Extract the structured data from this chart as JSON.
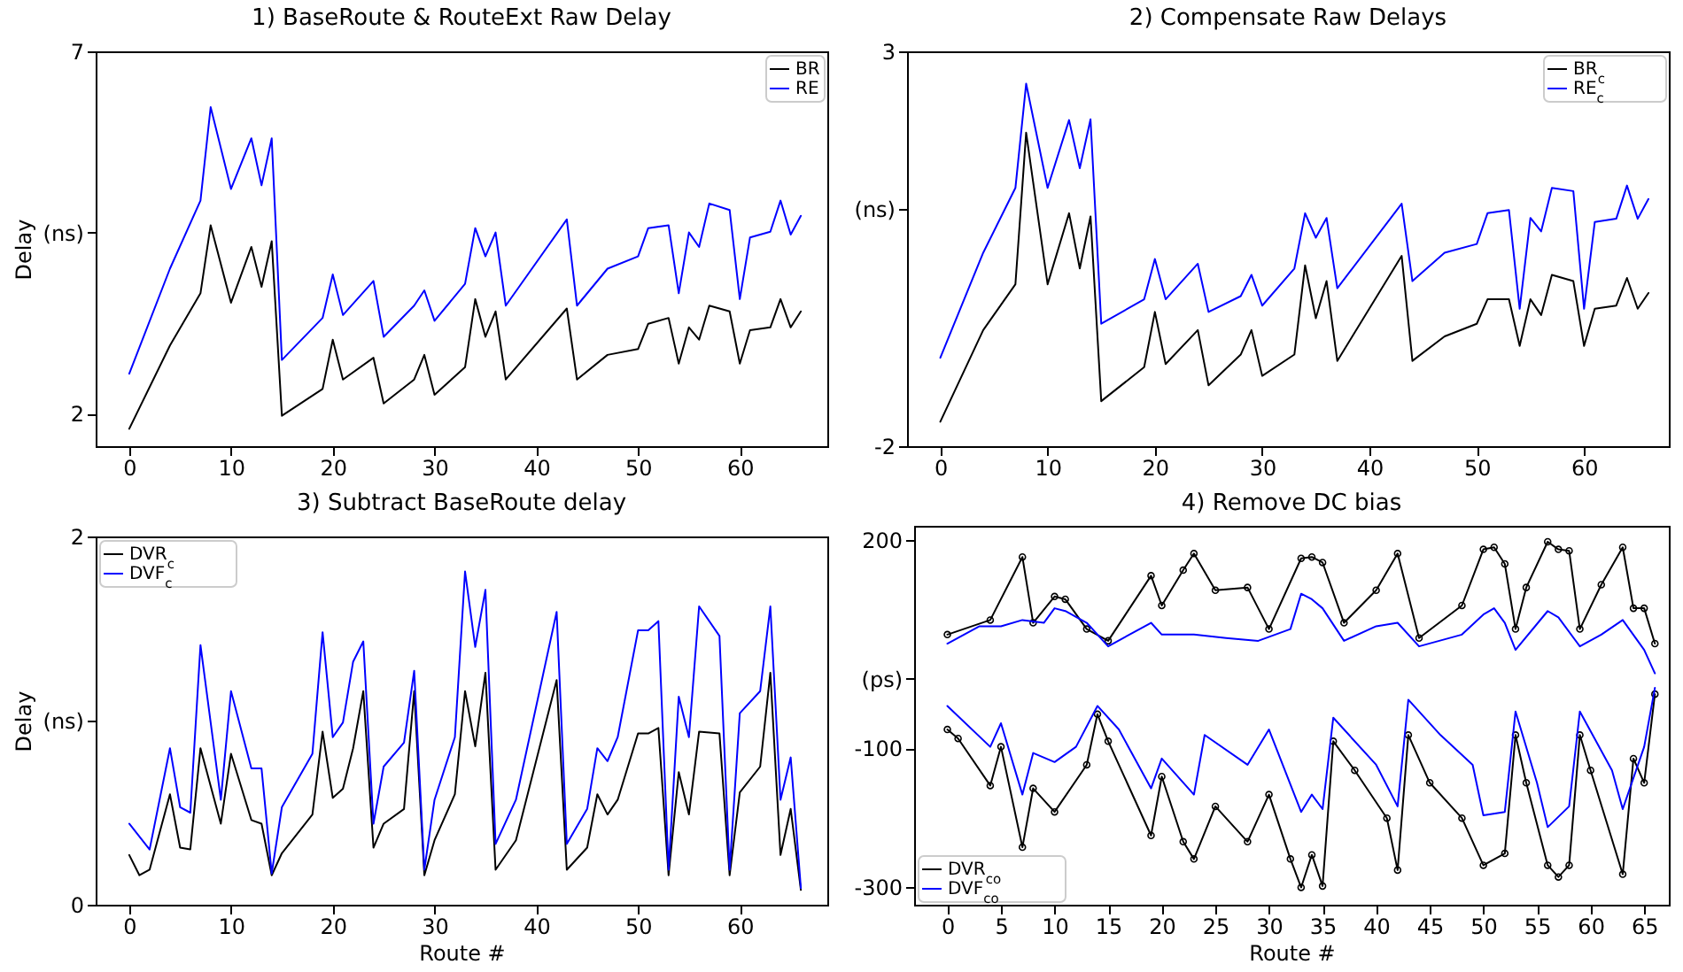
{
  "chart_data": [
    {
      "type": "line",
      "title": "1) BaseRoute & RouteExt Raw Delay",
      "ylabel": "Delay",
      "xlim": [
        -3.3,
        68.6
      ],
      "xticks": [
        0,
        10,
        20,
        30,
        40,
        50,
        60
      ],
      "ylim": [
        1.55,
        7
      ],
      "yticks": [
        2,
        {
          "value": 4.5,
          "label": "(ns)"
        },
        7
      ],
      "legend": "top right",
      "series": [
        {
          "name": "BR",
          "color": "#000000",
          "x": [
            0,
            4,
            7,
            8,
            10,
            12,
            13,
            14,
            15,
            19,
            20,
            21,
            24,
            25,
            28,
            29,
            30,
            33,
            34,
            35,
            36,
            37,
            43,
            44,
            47,
            50,
            51,
            53,
            54,
            55,
            56,
            57,
            59,
            60,
            61,
            63,
            64,
            65,
            66
          ],
          "values": [
            1.79,
            2.94,
            3.66,
            4.6,
            3.53,
            4.3,
            3.75,
            4.38,
            1.97,
            2.34,
            3.02,
            2.47,
            2.77,
            2.14,
            2.47,
            2.81,
            2.26,
            2.64,
            3.58,
            3.06,
            3.41,
            2.47,
            3.45,
            2.47,
            2.81,
            2.89,
            3.24,
            3.32,
            2.69,
            3.19,
            3.02,
            3.49,
            3.41,
            2.69,
            3.15,
            3.19,
            3.58,
            3.19,
            3.41
          ]
        },
        {
          "name": "RE",
          "color": "#0000ff",
          "x": [
            0,
            4,
            7,
            8,
            10,
            12,
            13,
            14,
            15,
            19,
            20,
            21,
            24,
            25,
            28,
            29,
            30,
            33,
            34,
            35,
            36,
            37,
            43,
            44,
            47,
            50,
            51,
            53,
            54,
            55,
            56,
            57,
            59,
            60,
            61,
            63,
            64,
            65,
            66
          ],
          "values": [
            2.55,
            4.0,
            4.94,
            6.23,
            5.1,
            5.8,
            5.15,
            5.8,
            2.74,
            3.32,
            3.92,
            3.36,
            3.83,
            3.06,
            3.49,
            3.7,
            3.28,
            3.79,
            4.56,
            4.17,
            4.5,
            3.49,
            4.68,
            3.49,
            4.0,
            4.17,
            4.56,
            4.6,
            3.66,
            4.5,
            4.3,
            4.9,
            4.81,
            3.58,
            4.43,
            4.51,
            4.94,
            4.47,
            4.73
          ]
        }
      ]
    },
    {
      "type": "line",
      "title": "2) Compensate Raw Delays",
      "xlim": [
        -3.1,
        67.9
      ],
      "xticks": [
        0,
        10,
        20,
        30,
        40,
        50,
        60
      ],
      "ylim": [
        -2,
        3
      ],
      "yticks": [
        -2,
        {
          "value": 1,
          "label": "(ns)"
        },
        3
      ],
      "legend": "top right",
      "series": [
        {
          "name": "BR$_{c}$",
          "color": "#000000",
          "x": [
            0,
            4,
            7,
            8,
            10,
            12,
            13,
            14,
            15,
            19,
            20,
            21,
            24,
            25,
            28,
            29,
            30,
            33,
            34,
            35,
            36,
            37,
            43,
            44,
            47,
            50,
            51,
            53,
            54,
            55,
            56,
            57,
            59,
            60,
            61,
            63,
            64,
            65,
            66
          ],
          "values": [
            -1.69,
            -0.53,
            0.05,
            1.97,
            0.05,
            0.95,
            0.25,
            0.91,
            -1.43,
            -1.0,
            -0.3,
            -0.96,
            -0.53,
            -1.23,
            -0.84,
            -0.53,
            -1.11,
            -0.84,
            0.29,
            -0.38,
            0.09,
            -0.92,
            0.41,
            -0.92,
            -0.61,
            -0.45,
            -0.14,
            -0.14,
            -0.73,
            -0.14,
            -0.34,
            0.17,
            0.09,
            -0.73,
            -0.26,
            -0.22,
            0.13,
            -0.26,
            -0.06
          ]
        },
        {
          "name": "RE$_{c}$",
          "color": "#0000ff",
          "x": [
            0,
            4,
            7,
            8,
            10,
            12,
            13,
            14,
            15,
            19,
            20,
            21,
            24,
            25,
            28,
            29,
            30,
            33,
            34,
            35,
            36,
            37,
            43,
            44,
            47,
            50,
            51,
            53,
            54,
            55,
            56,
            57,
            59,
            60,
            61,
            63,
            64,
            65,
            66
          ],
          "values": [
            -0.88,
            0.45,
            1.27,
            2.59,
            1.27,
            2.13,
            1.52,
            2.14,
            -0.45,
            -0.14,
            0.37,
            -0.14,
            0.31,
            -0.3,
            -0.1,
            0.17,
            -0.22,
            0.25,
            0.95,
            0.64,
            0.89,
            0.0,
            1.07,
            0.09,
            0.45,
            0.56,
            0.95,
            0.99,
            -0.26,
            0.89,
            0.72,
            1.27,
            1.23,
            -0.26,
            0.84,
            0.88,
            1.3,
            0.88,
            1.13
          ]
        }
      ]
    },
    {
      "type": "line",
      "title": "3) Subtract BaseRoute delay",
      "xlabel": "Route #",
      "ylabel": "Delay",
      "xlim": [
        -3.3,
        68.6
      ],
      "xticks": [
        0,
        10,
        20,
        30,
        40,
        50,
        60
      ],
      "ylim": [
        0,
        2
      ],
      "yticks": [
        0,
        {
          "value": 1,
          "label": "(ns)"
        },
        2
      ],
      "legend": "top left",
      "series": [
        {
          "name": "DVR$_{c}$",
          "color": "#000000",
          "x": [
            0,
            1,
            2,
            4,
            5,
            6,
            7,
            9,
            10,
            12,
            13,
            14,
            15,
            18,
            19,
            20,
            21,
            22,
            23,
            24,
            25,
            27,
            28,
            29,
            30,
            32,
            33,
            34,
            35,
            36,
            38,
            42,
            43,
            45,
            46,
            47,
            48,
            50,
            51,
            52,
            53,
            54,
            55,
            56,
            58,
            59,
            60,
            62,
            63,
            64,
            65,
            66
          ],
          "values": [
            0.27,
            0.16,
            0.19,
            0.6,
            0.31,
            0.3,
            0.85,
            0.44,
            0.82,
            0.46,
            0.44,
            0.16,
            0.28,
            0.49,
            0.94,
            0.58,
            0.63,
            0.85,
            1.16,
            0.31,
            0.44,
            0.52,
            1.16,
            0.16,
            0.35,
            0.6,
            1.16,
            0.86,
            1.26,
            0.19,
            0.35,
            1.22,
            0.19,
            0.31,
            0.6,
            0.49,
            0.57,
            0.93,
            0.93,
            0.96,
            0.16,
            0.72,
            0.49,
            0.94,
            0.93,
            0.16,
            0.61,
            0.75,
            1.26,
            0.27,
            0.52,
            0.08
          ]
        },
        {
          "name": "DVF$_{c}$",
          "color": "#0000ff",
          "x": [
            0,
            2,
            4,
            5,
            6,
            7,
            9,
            10,
            12,
            13,
            14,
            15,
            18,
            19,
            20,
            21,
            22,
            23,
            24,
            25,
            27,
            28,
            29,
            30,
            32,
            33,
            34,
            35,
            36,
            38,
            42,
            43,
            45,
            46,
            47,
            48,
            50,
            51,
            52,
            53,
            54,
            55,
            56,
            58,
            59,
            60,
            62,
            63,
            64,
            65,
            66
          ],
          "values": [
            0.44,
            0.3,
            0.85,
            0.53,
            0.5,
            1.41,
            0.57,
            1.16,
            0.74,
            0.74,
            0.17,
            0.53,
            0.82,
            1.48,
            0.91,
            0.99,
            1.32,
            1.43,
            0.44,
            0.75,
            0.88,
            1.27,
            0.19,
            0.57,
            0.91,
            1.81,
            1.4,
            1.71,
            0.33,
            0.57,
            1.59,
            0.33,
            0.52,
            0.85,
            0.78,
            0.91,
            1.49,
            1.49,
            1.54,
            0.19,
            1.13,
            0.91,
            1.62,
            1.46,
            0.19,
            1.04,
            1.16,
            1.62,
            0.57,
            0.8,
            0.09
          ]
        }
      ]
    },
    {
      "type": "line",
      "title": "4) Remove DC bias",
      "xlabel": "Route #",
      "xlim": [
        -3.1,
        67.3
      ],
      "xticks": [
        0,
        5,
        10,
        15,
        20,
        25,
        30,
        35,
        40,
        45,
        50,
        55,
        60,
        65
      ],
      "ylim": [
        -326,
        221
      ],
      "yticks": [
        -300,
        -100,
        {
          "value": 0,
          "label": "(ps)"
        },
        200
      ],
      "legend": "bottom left",
      "series": [
        {
          "name": "DVR$_{co}$",
          "color": "#000000",
          "marker": "circle",
          "x": [
            0,
            4,
            7,
            8,
            10,
            11,
            13,
            15,
            19,
            20,
            22,
            23,
            25,
            28,
            30,
            33,
            34,
            35,
            37,
            40,
            42,
            44,
            48,
            50,
            51,
            52,
            53,
            54,
            56,
            57,
            58,
            59,
            61,
            63,
            64,
            65,
            66
          ],
          "values": [
            64,
            85,
            176,
            81,
            119,
            115,
            72,
            55,
            149,
            106,
            157,
            181,
            128,
            132,
            72,
            174,
            176,
            168,
            81,
            128,
            181,
            59,
            106,
            187,
            190,
            166,
            72,
            132,
            198,
            187,
            185,
            72,
            136,
            190,
            102,
            102,
            51
          ]
        },
        {
          "color": "#000000",
          "marker": "circle",
          "x": [
            0,
            1,
            4,
            5,
            7,
            8,
            10,
            13,
            14,
            15,
            19,
            20,
            22,
            23,
            25,
            28,
            30,
            32,
            33,
            34,
            35,
            36,
            38,
            41,
            42,
            43,
            45,
            48,
            50,
            52,
            53,
            54,
            56,
            57,
            58,
            59,
            60,
            63,
            64,
            65,
            66
          ],
          "values": [
            -73,
            -86,
            -154,
            -98,
            -243,
            -158,
            -192,
            -124,
            -51,
            -90,
            -226,
            -141,
            -235,
            -260,
            -184,
            -235,
            -167,
            -260,
            -301,
            -254,
            -299,
            -90,
            -132,
            -201,
            -276,
            -81,
            -150,
            -201,
            -269,
            -252,
            -81,
            -150,
            -269,
            -286,
            -269,
            -81,
            -132,
            -282,
            -115,
            -150,
            -22
          ]
        },
        {
          "name": "DVF$_{co}$",
          "color": "#0000ff",
          "x": [
            0,
            3,
            5,
            7,
            9,
            10,
            11,
            13,
            15,
            19,
            20,
            23,
            26,
            29,
            32,
            33,
            34,
            35,
            37,
            40,
            42,
            44,
            48,
            50,
            51,
            52,
            53,
            56,
            57,
            59,
            61,
            63,
            65,
            66
          ],
          "values": [
            51,
            76,
            76,
            85,
            81,
            102,
            98,
            81,
            47,
            81,
            64,
            64,
            59,
            55,
            72,
            123,
            115,
            102,
            55,
            76,
            81,
            47,
            64,
            93,
            102,
            81,
            42,
            98,
            89,
            47,
            64,
            85,
            42,
            8
          ]
        },
        {
          "color": "#0000ff",
          "x": [
            0,
            4,
            5,
            7,
            8,
            10,
            12,
            14,
            16,
            19,
            20,
            23,
            24,
            28,
            30,
            33,
            34,
            35,
            36,
            40,
            42,
            43,
            46,
            49,
            50,
            52,
            53,
            55,
            56,
            58,
            59,
            62,
            63,
            65,
            66
          ],
          "values": [
            -39,
            -98,
            -64,
            -167,
            -107,
            -120,
            -98,
            -39,
            -73,
            -158,
            -115,
            -167,
            -81,
            -124,
            -73,
            -192,
            -167,
            -188,
            -56,
            -124,
            -184,
            -30,
            -81,
            -124,
            -197,
            -192,
            -47,
            -150,
            -214,
            -184,
            -47,
            -132,
            -188,
            -98,
            -13
          ]
        }
      ]
    }
  ]
}
